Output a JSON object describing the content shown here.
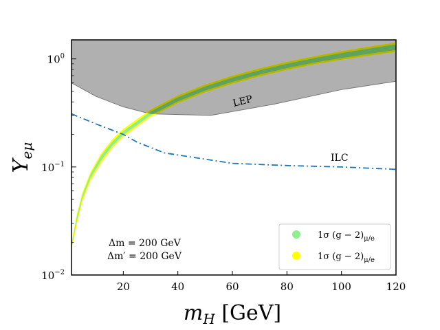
{
  "chart_data": {
    "type": "area",
    "xlabel": "m_H [GeV]",
    "ylabel": "Y_eμ",
    "xlim": [
      1,
      120
    ],
    "ylim": [
      0.01,
      1.5
    ],
    "yscale": "log",
    "xticks": [
      20,
      40,
      60,
      80,
      100,
      120
    ],
    "xtick_labels": [
      "20",
      "40",
      "60",
      "80",
      "100",
      "120"
    ],
    "yticks": [
      0.01,
      0.1,
      1
    ],
    "ytick_labels": [
      "10",
      "10",
      "10"
    ],
    "ytick_exponents": [
      "−2",
      "−1",
      "0"
    ],
    "lep": {
      "label": "LEP",
      "color": "#b0b0b0",
      "boundary": [
        [
          1,
          0.6
        ],
        [
          10,
          0.45
        ],
        [
          20,
          0.36
        ],
        [
          30,
          0.31
        ],
        [
          52,
          0.3
        ],
        [
          75,
          0.38
        ],
        [
          100,
          0.52
        ],
        [
          120,
          0.62
        ]
      ]
    },
    "ilc": {
      "label": "ILC",
      "label_color": "#0000ff",
      "line_color": "#1f77b4",
      "points": [
        [
          1,
          0.31
        ],
        [
          10,
          0.25
        ],
        [
          20,
          0.2
        ],
        [
          25,
          0.17
        ],
        [
          35,
          0.135
        ],
        [
          50,
          0.118
        ],
        [
          60,
          0.108
        ],
        [
          80,
          0.103
        ],
        [
          100,
          0.1
        ],
        [
          120,
          0.095
        ]
      ]
    },
    "series": [
      {
        "name": "1σ (g − 2)_μ/e",
        "label_main": "1σ (g − 2)",
        "label_sub": "μ/e",
        "color": "#ffff00",
        "x": [
          1,
          3,
          5,
          8,
          12,
          16,
          20,
          30,
          40,
          50,
          60,
          70,
          80,
          90,
          100,
          110,
          120
        ],
        "lower": [
          0.017,
          0.03,
          0.048,
          0.075,
          0.11,
          0.15,
          0.19,
          0.29,
          0.39,
          0.49,
          0.59,
          0.69,
          0.79,
          0.89,
          0.98,
          1.07,
          1.16
        ],
        "upper": [
          0.02,
          0.037,
          0.058,
          0.09,
          0.135,
          0.18,
          0.225,
          0.34,
          0.46,
          0.58,
          0.7,
          0.82,
          0.94,
          1.06,
          1.18,
          1.3,
          1.42
        ]
      },
      {
        "name": "1σ (g − 2)_μ/e",
        "label_main": "1σ (g − 2)",
        "label_sub": "μ/e",
        "color": "#90ee90",
        "x": [
          1,
          3,
          5,
          8,
          12,
          16,
          20,
          30,
          40,
          50,
          60,
          70,
          80,
          90,
          100,
          110,
          120
        ],
        "lower": [
          0.018,
          0.032,
          0.051,
          0.079,
          0.116,
          0.157,
          0.198,
          0.3,
          0.405,
          0.51,
          0.614,
          0.718,
          0.822,
          0.926,
          1.02,
          1.115,
          1.21
        ],
        "upper": [
          0.019,
          0.035,
          0.055,
          0.086,
          0.129,
          0.172,
          0.215,
          0.325,
          0.44,
          0.555,
          0.67,
          0.785,
          0.9,
          1.015,
          1.13,
          1.245,
          1.36
        ]
      }
    ],
    "annotations": {
      "delta_m": "Δm = 200 GeV",
      "delta_m_prime": "Δm′ = 200 GeV"
    }
  }
}
